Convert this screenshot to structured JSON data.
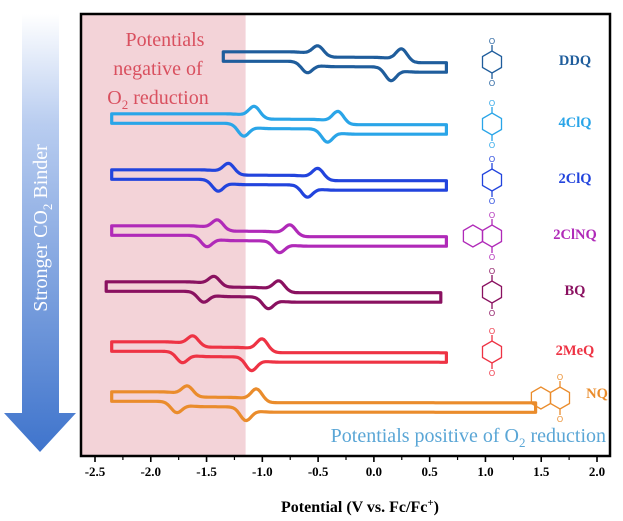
{
  "chart_data": {
    "type": "line",
    "title": "",
    "xlabel": "Potential (V vs. Fc/Fc",
    "xlabel_sup": "+",
    "xlabel_close": ")",
    "xlim": [
      -2.5,
      2.3
    ],
    "xticks": [
      "-2.5",
      "-2.0",
      "-1.5",
      "-1.0",
      "-0.5",
      "0.0",
      "0.5",
      "1.0",
      "1.5",
      "2.0"
    ],
    "xtick_values": [
      -2.5,
      -2.0,
      -1.5,
      -1.0,
      -0.5,
      0.0,
      0.5,
      1.0,
      1.5,
      2.0
    ],
    "negative_region": {
      "x_range": [
        -2.5,
        -1.15
      ],
      "color": "#f3d3d8",
      "text_lines": [
        "Potentials",
        "negative of"
      ],
      "text_line3_a": "O",
      "text_line3_sub": "2",
      "text_line3_b": " reduction",
      "color_text": "#d9505f"
    },
    "positive_annotation": {
      "text_a": "Potentials positive of O",
      "text_sub": "2",
      "text_b": " reduction",
      "color": "#5aa6d6"
    },
    "arrow": {
      "text_a": "Stronger CO",
      "text_sub": "2",
      "text_b": " Binder",
      "color": "#3f74cc"
    },
    "series": [
      {
        "name": "DDQ",
        "color": "#1f5d9c",
        "x_start": -1.35,
        "x_end": 0.65,
        "peaks": [
          -0.55,
          0.2
        ],
        "ampl": [
          1.0,
          1.25
        ]
      },
      {
        "name": "4ClQ",
        "color": "#2aa5e8",
        "x_start": -2.35,
        "x_end": 0.65,
        "peaks": [
          -1.12,
          -0.37
        ],
        "ampl": [
          1.15,
          1.2
        ]
      },
      {
        "name": "2ClQ",
        "color": "#2244dd",
        "x_start": -2.35,
        "x_end": 0.65,
        "peaks": [
          -1.35,
          -0.55
        ],
        "ampl": [
          1.05,
          1.1
        ]
      },
      {
        "name": "2ClNQ",
        "color": "#b02ab8",
        "x_start": -2.35,
        "x_end": 0.65,
        "peaks": [
          -1.45,
          -0.8
        ],
        "ampl": [
          1.0,
          1.05
        ]
      },
      {
        "name": "BQ",
        "color": "#8a1160",
        "x_start": -2.4,
        "x_end": 0.6,
        "peaks": [
          -1.48,
          -0.9
        ],
        "ampl": [
          0.95,
          1.05
        ]
      },
      {
        "name": "2MeQ",
        "color": "#ee3344",
        "x_start": -2.35,
        "x_end": 0.65,
        "peaks": [
          -1.67,
          -1.05
        ],
        "ampl": [
          1.0,
          1.25
        ]
      },
      {
        "name": "NQ",
        "color": "#ea8c2c",
        "x_start": -2.35,
        "x_end": 1.45,
        "peaks": [
          -1.72,
          -1.1
        ],
        "ampl": [
          1.0,
          1.25
        ]
      }
    ]
  }
}
